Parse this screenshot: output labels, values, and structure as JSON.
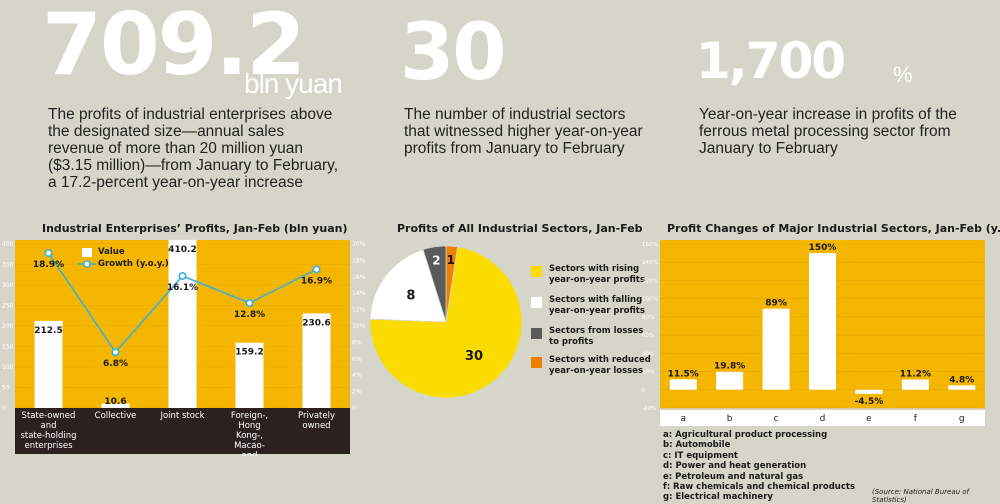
{
  "headline1": {
    "number": "709.2",
    "unit": "bln yuan",
    "description": "The profits of industrial enterprises above the designated size—annual sales revenue of more than 20 million yuan ($3.15 million)—from January to February, a 17.2-percent year-on-year increase"
  },
  "headline2": {
    "number": "30",
    "description": "The number of industrial sectors that witnessed higher year-on-year profits from January to February"
  },
  "headline3": {
    "number": "1,700",
    "unit": "%",
    "description": "Year-on-year increase in profits of the ferrous metal processing sector from January to February"
  },
  "colors": {
    "background": "#d6d5c9",
    "chart_bg": "#f4b601",
    "yellow": "#fbdc00",
    "bar": "#ffffff",
    "line": "#38b2d6",
    "dark": "#2b2220",
    "grey": "#5a5a5a",
    "orange": "#ee7f00"
  },
  "chart_data": [
    {
      "type": "bar",
      "title": "Industrial Enterprises’ Profits, Jan-Feb  (bln yuan)",
      "categories": [
        "State-owned and state-holding enterprises",
        "Collective",
        "Joint stock",
        "Foreign-, Hong Kong-, Macao- and Taiwan-funded",
        "Privately owned"
      ],
      "series": [
        {
          "name": "Value",
          "type": "bar",
          "values": [
            212.5,
            10.6,
            410.2,
            159.2,
            230.6
          ],
          "labels": [
            "212.5",
            "10.6",
            "410.2",
            "159.2",
            "230.6"
          ]
        },
        {
          "name": "Growth (y.o.y.)",
          "type": "line",
          "values": [
            18.9,
            6.8,
            16.1,
            12.8,
            16.9
          ],
          "labels": [
            "18.9%",
            "6.8%",
            "16.1%",
            "12.8%",
            "16.9%"
          ]
        }
      ],
      "ylim": [
        0,
        400
      ],
      "yticks": [
        "0",
        "50",
        "100",
        "150",
        "200",
        "250",
        "300",
        "350",
        "400"
      ],
      "y2lim": [
        0,
        20
      ],
      "y2ticks": [
        "0",
        "2%",
        "4%",
        "6%",
        "8%",
        "10%",
        "12%",
        "14%",
        "16%",
        "18%",
        "20%"
      ],
      "legend": "top-left"
    },
    {
      "type": "pie",
      "title": "Profits of All Industrial Sectors, Jan-Feb",
      "slices": [
        {
          "label": "Sectors with rising year-on-year profits",
          "value": 30,
          "color": "#fbdc00"
        },
        {
          "label": "Sectors with falling year-on-year profits",
          "value": 8,
          "color": "#ffffff"
        },
        {
          "label": "Sectors from losses to profits",
          "value": 2,
          "color": "#5a5a5a"
        },
        {
          "label": "Sectors with reduced year-on-year losses",
          "value": 1,
          "color": "#ee7f00"
        }
      ],
      "legend": "right"
    },
    {
      "type": "bar",
      "title": "Profit Changes of Major Industrial Sectors, Jan-Feb (y.o.y.)",
      "categories": [
        "a",
        "b",
        "c",
        "d",
        "e",
        "f",
        "g"
      ],
      "values": [
        11.5,
        19.8,
        89,
        150,
        -4.5,
        11.2,
        4.8
      ],
      "labels": [
        "11.5%",
        "19.8%",
        "89%",
        "150%",
        "-4.5%",
        "11.2%",
        "4.8%"
      ],
      "ylim": [
        -20,
        160
      ],
      "yticks": [
        "-20%",
        "0",
        "20%",
        "40%",
        "60%",
        "80%",
        "100%",
        "120%",
        "140%",
        "160%"
      ],
      "key": [
        "a: Agricultural product processing",
        "b: Automobile",
        "c: IT equipment",
        "d: Power and heat generation",
        "e: Petroleum and natural gas",
        "f: Raw chemicals and chemical products",
        "g: Electrical machinery"
      ]
    }
  ],
  "source": "(Source: National Bureau of Statistics)"
}
